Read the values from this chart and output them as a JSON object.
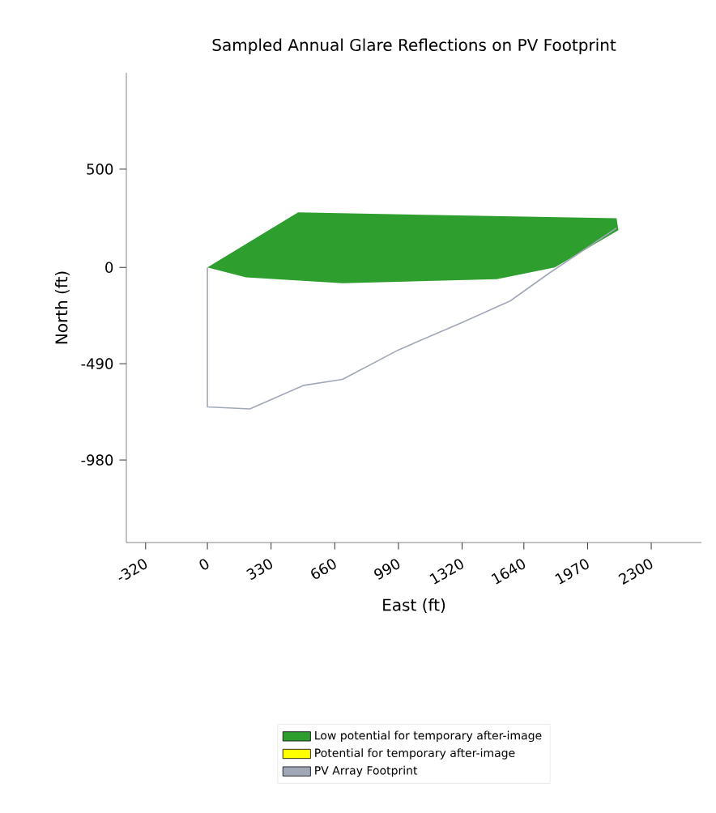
{
  "chart_data": {
    "type": "area",
    "title": "Sampled Annual Glare Reflections on PV Footprint",
    "xlabel": "East (ft)",
    "ylabel": "North (ft)",
    "xlim": [
      -420,
      2560
    ],
    "ylim": [
      -1400,
      990
    ],
    "xticks": [
      -320,
      0,
      330,
      660,
      990,
      1320,
      1640,
      1970,
      2300
    ],
    "yticks": [
      500,
      0,
      -490,
      -980
    ],
    "legend": "bottom",
    "series": [
      {
        "name": "Low potential for temporary after-image",
        "color": "#2e9e2e",
        "x": [
          0,
          470,
          2120,
          2130,
          1800,
          1500,
          700,
          200,
          0
        ],
        "values": [
          0,
          280,
          250,
          190,
          0,
          -60,
          -80,
          -50,
          0
        ]
      },
      {
        "name": "Potential for temporary after-image",
        "type": "scatter",
        "color": "#ffff00"
      },
      {
        "name": "PV Array Footprint",
        "type": "line",
        "color": "#a0a8b8",
        "x": [
          0,
          0,
          220,
          500,
          700,
          990,
          1320,
          1570,
          1770,
          2120
        ],
        "values": [
          0,
          -710,
          -720,
          -600,
          -570,
          -420,
          -280,
          -170,
          -30,
          200
        ]
      }
    ]
  }
}
